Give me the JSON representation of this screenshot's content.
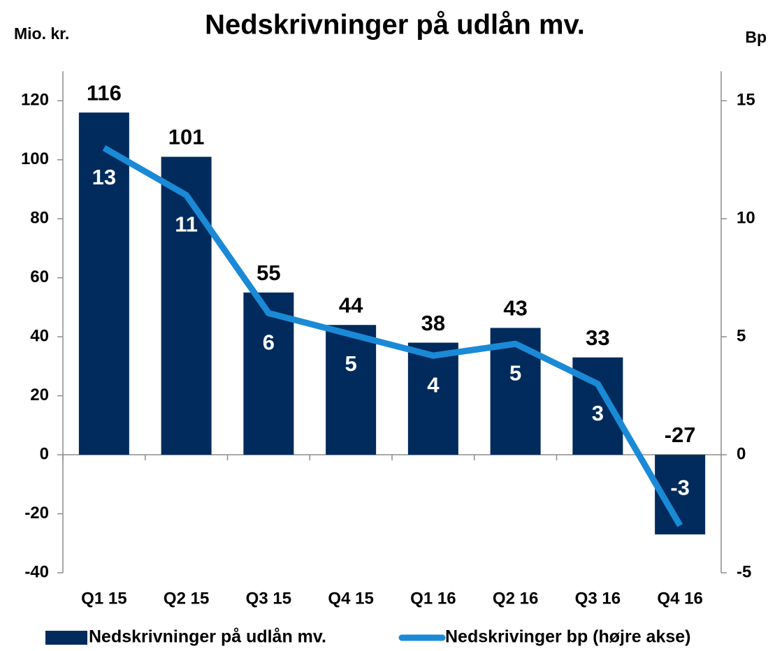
{
  "chart_data": {
    "type": "bar_line",
    "title": "Nedskrivninger på udlån mv.",
    "y_label": "Mio. kr.",
    "y2_label": "Bp",
    "categories": [
      "Q1 15",
      "Q2 15",
      "Q3 15",
      "Q4 15",
      "Q1 16",
      "Q2 16",
      "Q3 16",
      "Q4 16"
    ],
    "series": [
      {
        "name": "Nedskrivninger på udlån mv.",
        "type": "bar",
        "color": "#002b5c",
        "values": [
          116,
          101,
          55,
          44,
          38,
          43,
          33,
          -27
        ]
      },
      {
        "name": "Nedskrivinger bp (højre akse)",
        "type": "line",
        "axis": "y2",
        "color": "#1b8ad6",
        "values": [
          13,
          11,
          6,
          5.1,
          4.2,
          4.7,
          3,
          -3
        ],
        "value_labels": [
          "13",
          "11",
          "6",
          "5",
          "4",
          "5",
          "3",
          "-3"
        ]
      }
    ],
    "ylim": [
      -40,
      130
    ],
    "yticks": [
      -40,
      -20,
      0,
      20,
      40,
      60,
      80,
      100,
      120
    ],
    "y2lim": [
      -5,
      16.25
    ],
    "y2ticks": [
      -5,
      0,
      5,
      10,
      15
    ],
    "legend": "bottom"
  }
}
